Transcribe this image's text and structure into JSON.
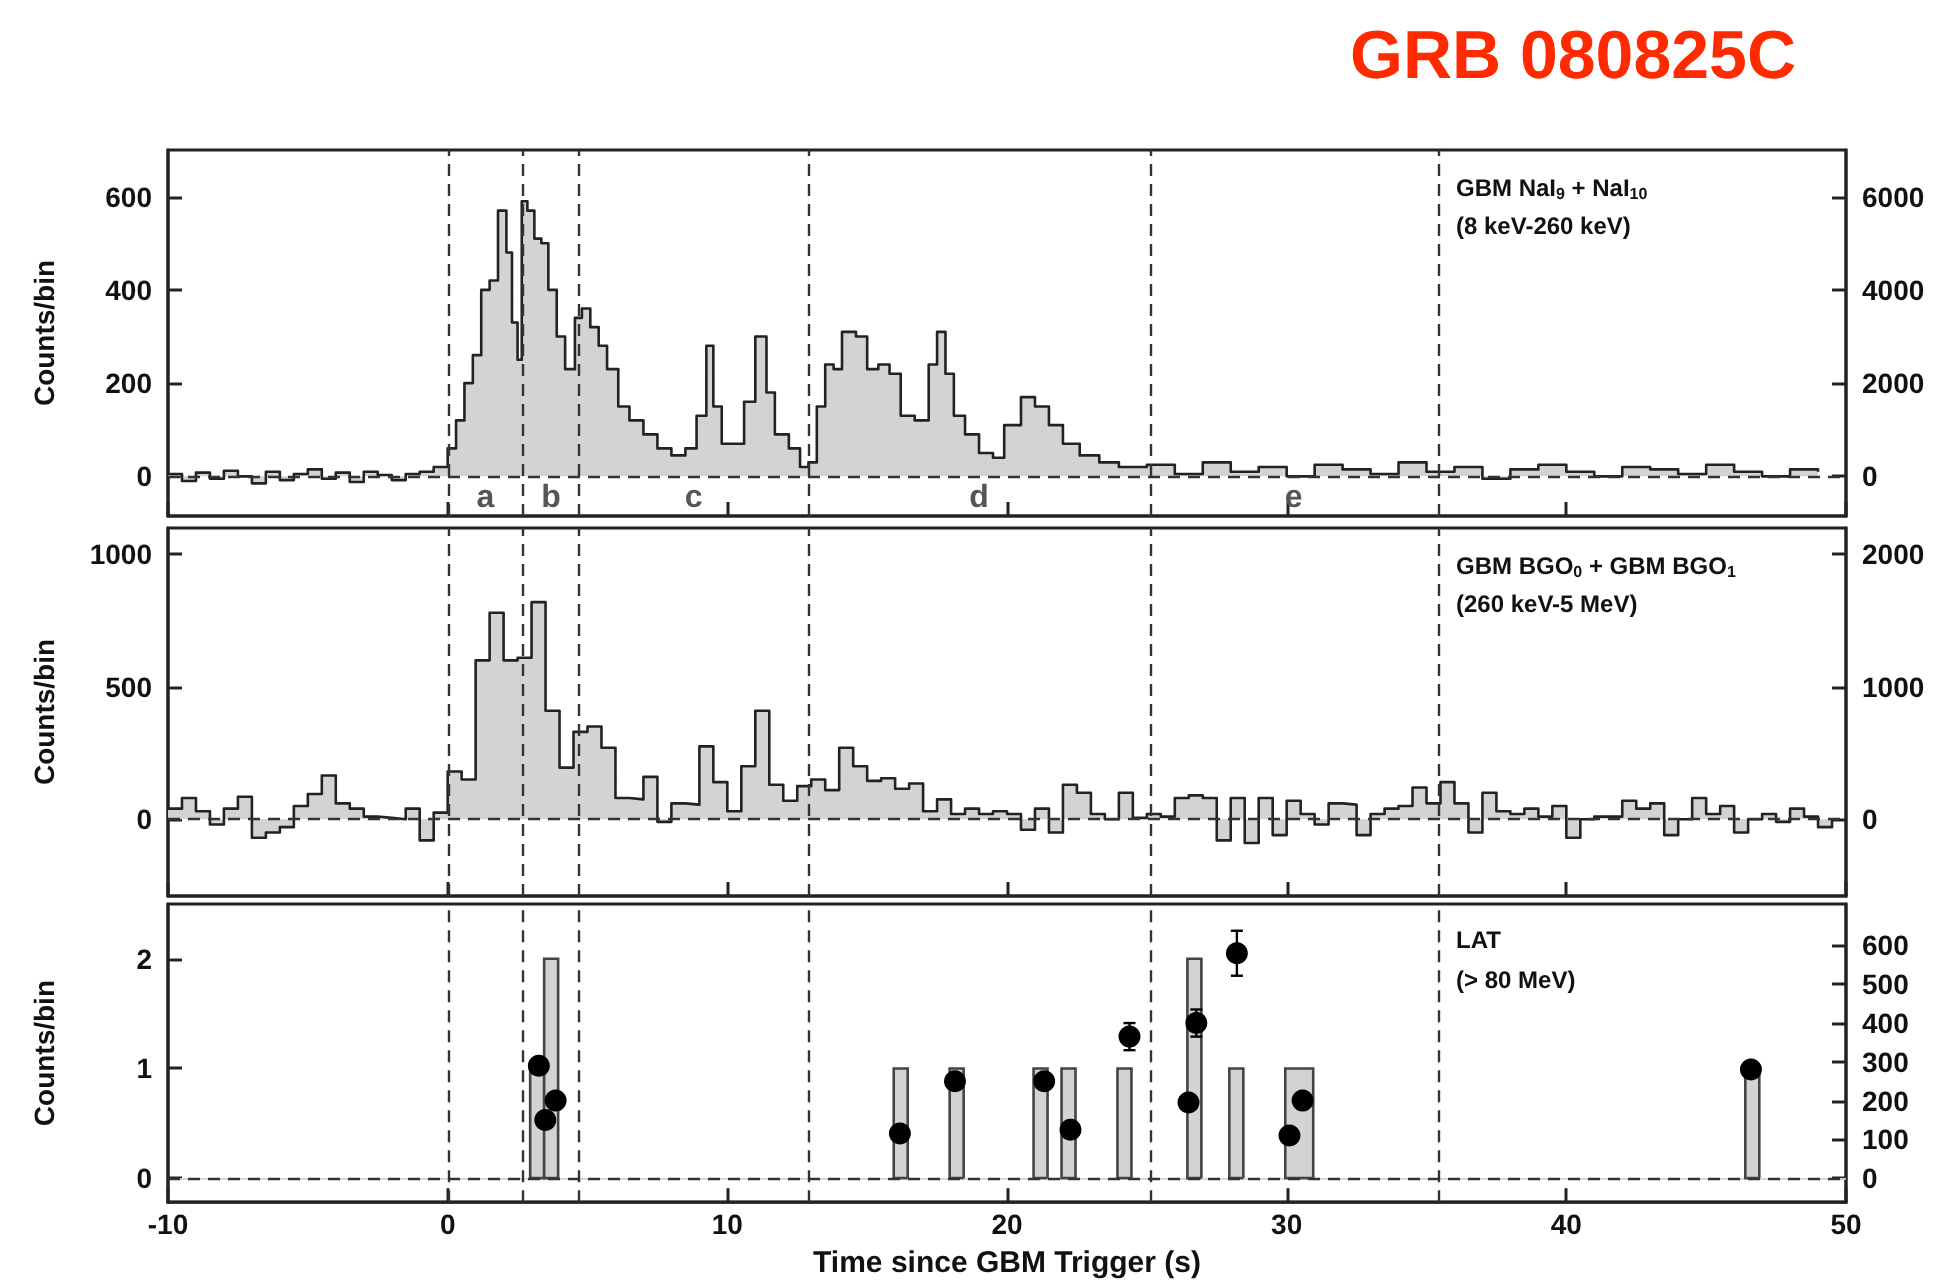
{
  "chart_data": [
    {
      "type": "step",
      "title": "GRB 080825C",
      "ylabel": "Counts/bin",
      "annotations": [
        "GBM NaI$_{9}$ + NaI$_{10}$",
        "(8 keV-260 keV)",
        "a",
        "b",
        "c",
        "d",
        "e"
      ],
      "series": [
        {
          "color": "#222222",
          "x": [
            -10,
            -9.5,
            -9,
            -8.5,
            -8,
            -7.5,
            -7,
            -6.5,
            -6,
            -5.5,
            -5,
            -4.5,
            -4,
            -3.5,
            -3,
            -2.5,
            -2,
            -1.5,
            -1,
            -0.5,
            0,
            0.3,
            0.6,
            0.9,
            1.2,
            1.5,
            1.8,
            2.1,
            2.3,
            2.5,
            2.65,
            2.85,
            3.1,
            3.35,
            3.6,
            3.9,
            4.2,
            4.55,
            4.8,
            5.1,
            5.4,
            5.7,
            6.1,
            6.5,
            7,
            7.5,
            8,
            8.5,
            8.9,
            9.25,
            9.5,
            9.8,
            10.2,
            10.6,
            11,
            11.4,
            11.7,
            12.2,
            12.6,
            12.9,
            13.2,
            13.5,
            13.8,
            14.1,
            14.6,
            15,
            15.4,
            15.8,
            16.2,
            16.7,
            17.2,
            17.5,
            17.8,
            18.1,
            18.5,
            19,
            19.5,
            19.9,
            20.5,
            21,
            21.5,
            22,
            22.6,
            23.3,
            24,
            25,
            26,
            27,
            28,
            29,
            30,
            31,
            32,
            33,
            34,
            35,
            36,
            37,
            38,
            39,
            40,
            41,
            42,
            43,
            44,
            45,
            46,
            47,
            48,
            49
          ],
          "values": [
            5,
            -10,
            8,
            -5,
            12,
            0,
            -15,
            10,
            -8,
            5,
            15,
            -5,
            8,
            -12,
            10,
            3,
            -8,
            5,
            10,
            20,
            60,
            120,
            200,
            260,
            400,
            420,
            570,
            480,
            330,
            250,
            590,
            570,
            510,
            500,
            400,
            300,
            230,
            340,
            360,
            320,
            280,
            230,
            150,
            120,
            90,
            60,
            45,
            60,
            130,
            280,
            150,
            70,
            70,
            160,
            300,
            180,
            90,
            60,
            20,
            30,
            150,
            240,
            230,
            310,
            300,
            230,
            240,
            220,
            130,
            120,
            240,
            310,
            220,
            130,
            90,
            50,
            40,
            110,
            170,
            150,
            110,
            70,
            45,
            30,
            20,
            25,
            5,
            30,
            10,
            20,
            0,
            25,
            15,
            5,
            30,
            10,
            20,
            -5,
            15,
            25,
            10,
            0,
            20,
            15,
            5,
            25,
            10,
            0,
            15,
            10
          ]
        }
      ],
      "xlim": [
        -10,
        50
      ],
      "xticks": [
        -10,
        0,
        10,
        20,
        30,
        40,
        50
      ],
      "ylim": [
        -85,
        700
      ],
      "yticks": [
        0,
        200,
        400,
        600
      ],
      "y2lim": [
        -850,
        7000
      ],
      "y2ticks": [
        0,
        2000,
        4000,
        6000
      ],
      "tick_labels": "y",
      "ref_lines": [
        {
          "axis": "y",
          "value": 0,
          "line_style": "dashed"
        },
        {
          "axis": "x",
          "value": 0,
          "line_style": "dashed"
        },
        {
          "axis": "x",
          "value": 2.7,
          "line_style": "dashed"
        },
        {
          "axis": "x",
          "value": 4.7,
          "line_style": "dashed"
        },
        {
          "axis": "x",
          "value": 12.9,
          "line_style": "dashed"
        },
        {
          "axis": "x",
          "value": 25.1,
          "line_style": "dashed"
        },
        {
          "axis": "x",
          "value": 35.4,
          "line_style": "dashed"
        }
      ]
    },
    {
      "type": "step",
      "ylabel": "Counts/bin",
      "annotations": [
        "GBM BGO$_{0}$ + GBM BGO$_{1}$",
        "(260 keV-5 MeV)"
      ],
      "series": [
        {
          "color": "#222222",
          "x": [
            -10,
            -9.5,
            -9,
            -8.5,
            -8,
            -7.5,
            -7,
            -6.5,
            -6,
            -5.5,
            -5,
            -4.5,
            -4,
            -3.5,
            -3,
            -2.5,
            -2,
            -1.5,
            -1,
            -0.5,
            0,
            0.5,
            1,
            1.5,
            2,
            2.5,
            3,
            3.5,
            4,
            4.5,
            5,
            5.5,
            6,
            6.5,
            7,
            7.5,
            8,
            8.5,
            9,
            9.5,
            10,
            10.5,
            11,
            11.5,
            12,
            12.5,
            13,
            13.5,
            14,
            14.5,
            15,
            15.5,
            16,
            16.5,
            17,
            17.5,
            18,
            18.5,
            19,
            19.5,
            20,
            20.5,
            21,
            21.5,
            22,
            22.5,
            23,
            23.5,
            24,
            24.5,
            25,
            25.5,
            26,
            26.5,
            27,
            27.5,
            28,
            28.5,
            29,
            29.5,
            30,
            30.5,
            31,
            31.5,
            32,
            32.5,
            33,
            33.5,
            34,
            34.5,
            35,
            35.5,
            36,
            36.5,
            37,
            37.5,
            38,
            38.5,
            39,
            39.5,
            40,
            40.5,
            41,
            41.5,
            42,
            42.5,
            43,
            43.5,
            44,
            44.5,
            45,
            45.5,
            46,
            46.5,
            47,
            47.5,
            48,
            48.5,
            49,
            49.5
          ],
          "values": [
            40,
            80,
            30,
            -20,
            40,
            85,
            -70,
            -50,
            -30,
            50,
            95,
            165,
            60,
            40,
            10,
            5,
            0,
            40,
            -80,
            25,
            180,
            150,
            600,
            780,
            600,
            610,
            820,
            410,
            195,
            330,
            350,
            270,
            80,
            75,
            160,
            -10,
            60,
            55,
            275,
            140,
            30,
            200,
            410,
            130,
            70,
            125,
            150,
            110,
            270,
            200,
            145,
            155,
            115,
            135,
            30,
            75,
            20,
            40,
            20,
            30,
            20,
            -40,
            40,
            -50,
            130,
            100,
            20,
            0,
            100,
            5,
            20,
            10,
            80,
            90,
            80,
            -80,
            80,
            -90,
            80,
            -60,
            70,
            20,
            -20,
            60,
            55,
            -60,
            20,
            40,
            50,
            120,
            60,
            140,
            60,
            -50,
            100,
            30,
            20,
            40,
            10,
            50,
            -70,
            0,
            10,
            10,
            70,
            40,
            60,
            -60,
            0,
            80,
            20,
            50,
            -50,
            0,
            20,
            -10,
            40,
            10,
            -30,
            0
          ]
        }
      ],
      "xlim": [
        -10,
        50
      ],
      "xticks": [
        -10,
        0,
        10,
        20,
        30,
        40,
        50
      ],
      "ylim": [
        -290,
        1100
      ],
      "yticks": [
        0,
        500,
        1000
      ],
      "y2lim": [
        -580,
        2200
      ],
      "y2ticks": [
        0,
        1000,
        2000
      ],
      "tick_labels": "y",
      "ref_lines": [
        {
          "axis": "y",
          "value": 0,
          "line_style": "dashed"
        },
        {
          "axis": "x",
          "value": 0,
          "line_style": "dashed"
        },
        {
          "axis": "x",
          "value": 2.7,
          "line_style": "dashed"
        },
        {
          "axis": "x",
          "value": 4.7,
          "line_style": "dashed"
        },
        {
          "axis": "x",
          "value": 12.9,
          "line_style": "dashed"
        },
        {
          "axis": "x",
          "value": 25.1,
          "line_style": "dashed"
        },
        {
          "axis": "x",
          "value": 35.4,
          "line_style": "dashed"
        }
      ]
    },
    {
      "type": "histogram",
      "xlabel": "Time since GBM Trigger (s)",
      "ylabel": "Counts/bin",
      "annotations": [
        "LAT",
        "(> 80 MeV)"
      ],
      "series": [
        {
          "color": "#d3d3d3",
          "bins": [
            -10,
            2.95,
            3.45,
            3.95,
            15.95,
            16.45,
            17.95,
            18.45,
            20.95,
            21.45,
            21.95,
            22.45,
            23.95,
            24.45,
            26.45,
            26.95,
            27.95,
            28.45,
            29.95,
            30.95,
            46.4,
            46.9,
            50
          ],
          "values": [
            0,
            1,
            2,
            0,
            1,
            0,
            1,
            0,
            1,
            0,
            1,
            0,
            1,
            0,
            2,
            0,
            1,
            0,
            1,
            0,
            1,
            0
          ]
        },
        {
          "type": "scatter",
          "axis": "y2",
          "color": "#000000",
          "marker": "circle",
          "x": [
            3.26,
            3.49,
            3.86,
            16.17,
            18.14,
            21.33,
            22.27,
            24.38,
            26.49,
            26.77,
            28.22,
            30.1,
            30.57,
            46.6
          ],
          "values": [
            290,
            150,
            200,
            115,
            250,
            250,
            125,
            365,
            195,
            400,
            580,
            110,
            200,
            280
          ],
          "errors": [
            null,
            null,
            null,
            null,
            null,
            null,
            null,
            35,
            null,
            35,
            58,
            null,
            null,
            20
          ]
        }
      ],
      "xlim": [
        -10,
        50
      ],
      "xticks": [
        -10,
        0,
        10,
        20,
        30,
        40,
        50
      ],
      "ylim": [
        -0.22,
        2.5
      ],
      "yticks": [
        0,
        1,
        2
      ],
      "y2lim": [
        -62,
        707
      ],
      "y2ticks": [
        0,
        100,
        200,
        300,
        400,
        500,
        600
      ],
      "ref_lines": [
        {
          "axis": "y",
          "value": 0,
          "line_style": "dashed"
        },
        {
          "axis": "x",
          "value": 0,
          "line_style": "dashed"
        },
        {
          "axis": "x",
          "value": 2.7,
          "line_style": "dashed"
        },
        {
          "axis": "x",
          "value": 4.7,
          "line_style": "dashed"
        },
        {
          "axis": "x",
          "value": 12.9,
          "line_style": "dashed"
        },
        {
          "axis": "x",
          "value": 25.1,
          "line_style": "dashed"
        },
        {
          "axis": "x",
          "value": 35.4,
          "line_style": "dashed"
        }
      ]
    }
  ]
}
